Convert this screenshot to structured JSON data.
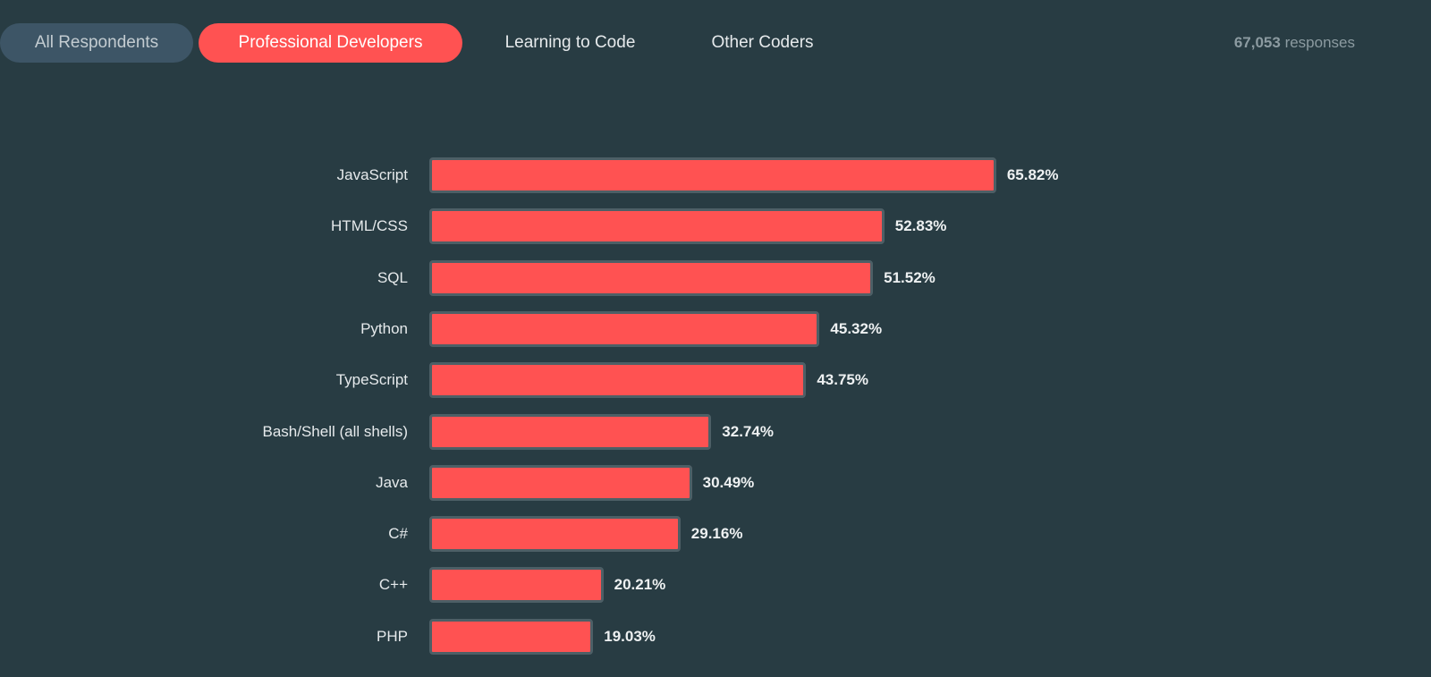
{
  "tabs": [
    {
      "label": "All Respondents",
      "active": false
    },
    {
      "label": "Professional Developers",
      "active": true
    },
    {
      "label": "Learning to Code",
      "active": false
    },
    {
      "label": "Other Coders",
      "active": false
    }
  ],
  "responses": {
    "count": "67,053",
    "label": "responses"
  },
  "colors": {
    "bar": "#ff5252",
    "background": "#283c43",
    "active_tab": "#ff5252"
  },
  "chart_data": {
    "type": "bar",
    "orientation": "horizontal",
    "categories": [
      "JavaScript",
      "HTML/CSS",
      "SQL",
      "Python",
      "TypeScript",
      "Bash/Shell (all shells)",
      "Java",
      "C#",
      "C++",
      "PHP"
    ],
    "values": [
      65.82,
      52.83,
      51.52,
      45.32,
      43.75,
      32.74,
      30.49,
      29.16,
      20.21,
      19.03
    ],
    "data_labels": [
      "65.82%",
      "52.83%",
      "51.52%",
      "45.32%",
      "43.75%",
      "32.74%",
      "30.49%",
      "29.16%",
      "20.21%",
      "19.03%"
    ],
    "unit": "%",
    "grid": false
  }
}
